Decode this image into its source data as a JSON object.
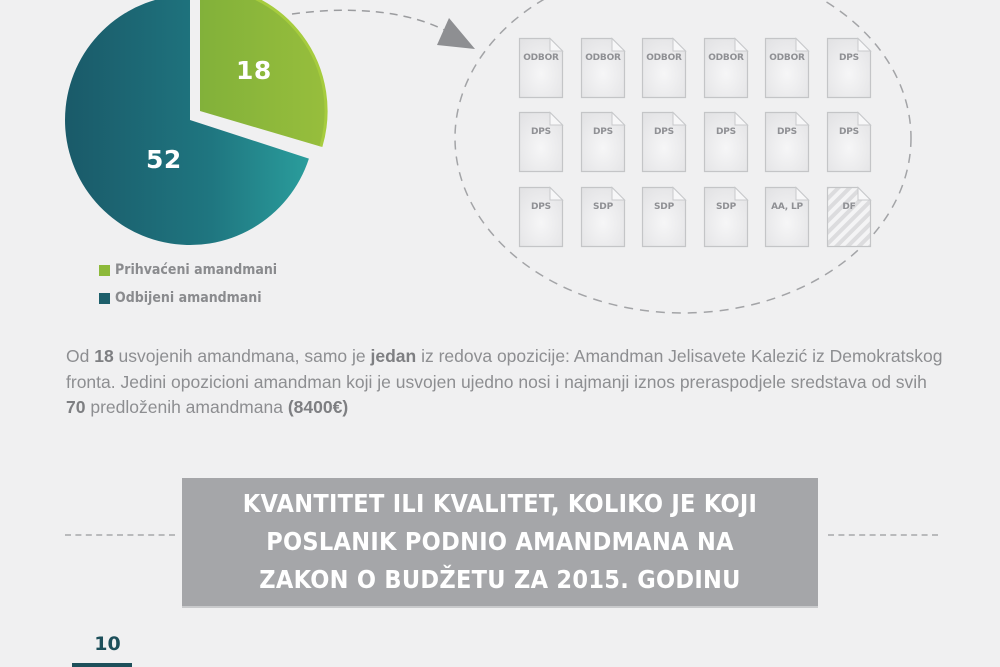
{
  "chart_data": {
    "type": "pie",
    "title": "",
    "slices": [
      {
        "label": "Prihvaćeni amandmani",
        "value": 18,
        "color": "#8db93a"
      },
      {
        "label": "Odbijeni amandmani",
        "value": 52,
        "color": "#1f6f7c"
      }
    ],
    "total": 70,
    "legend_position": "bottom-left",
    "exploded_slice": "Prihvaćeni amandmani"
  },
  "pie": {
    "accepted_value": "18",
    "rejected_value": "52"
  },
  "legend": {
    "items": [
      {
        "label": "Prihvaćeni amandmani",
        "color": "#8db93a"
      },
      {
        "label": "Odbijeni amandmani",
        "color": "#1d5f6b"
      }
    ]
  },
  "accepted_documents": {
    "rows": [
      [
        "ODBOR",
        "ODBOR",
        "ODBOR",
        "ODBOR",
        "ODBOR",
        "DPS"
      ],
      [
        "DPS",
        "DPS",
        "DPS",
        "DPS",
        "DPS",
        "DPS"
      ],
      [
        "DPS",
        "SDP",
        "SDP",
        "SDP",
        "AA, LP",
        "DF"
      ]
    ],
    "highlighted": "DF"
  },
  "paragraph": {
    "parts": [
      {
        "text": "Od ",
        "bold": false
      },
      {
        "text": "18",
        "bold": true
      },
      {
        "text": " usvojenih amandmana, samo je ",
        "bold": false
      },
      {
        "text": "jedan",
        "bold": true
      },
      {
        "text": " iz redova opozicije: Amandman Jelisavete Kalezić iz Demokratskog fronta. Jedini opozicioni amandman koji je usvojen ujedno nosi i najmanji iznos preraspodjele sredstava od svih ",
        "bold": false
      },
      {
        "text": "70",
        "bold": true
      },
      {
        "text": " predloženih amandmana ",
        "bold": false
      },
      {
        "text": "(8400€)",
        "bold": true
      }
    ]
  },
  "section_title": {
    "lines": [
      "KVANTITET ILI KVALITET, KOLIKO JE KOJI",
      "POSLANIK PODNIO AMANDMANA NA",
      "ZAKON O BUDŽETU ZA 2015. GODINU"
    ]
  },
  "page": {
    "number": "10",
    "accent": "#1d4f5a"
  }
}
